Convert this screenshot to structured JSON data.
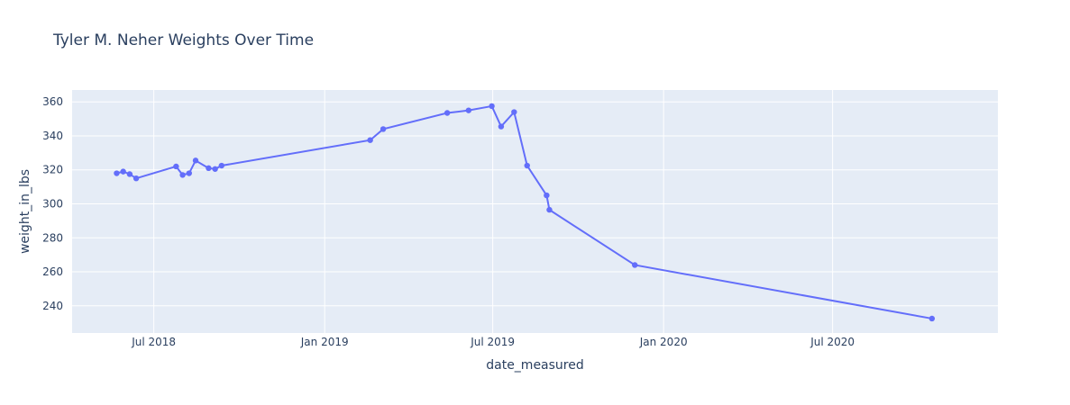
{
  "chart_data": {
    "type": "line",
    "title": "Tyler M. Neher Weights Over Time",
    "xlabel": "date_measured",
    "ylabel": "weight_in_lbs",
    "xlim": [
      "2018-04-04",
      "2020-12-26"
    ],
    "ylim": [
      224,
      367
    ],
    "grid": true,
    "x_ticks": [
      {
        "value": "2018-07-01",
        "label": "Jul 2018"
      },
      {
        "value": "2019-01-01",
        "label": "Jan 2019"
      },
      {
        "value": "2019-07-01",
        "label": "Jul 2019"
      },
      {
        "value": "2020-01-01",
        "label": "Jan 2020"
      },
      {
        "value": "2020-07-01",
        "label": "Jul 2020"
      }
    ],
    "y_ticks": [
      240,
      260,
      280,
      300,
      320,
      340,
      360
    ],
    "series": [
      {
        "color": "#636efa",
        "points": [
          {
            "x": "2018-05-22",
            "y": 318
          },
          {
            "x": "2018-05-29",
            "y": 319
          },
          {
            "x": "2018-06-05",
            "y": 317.5
          },
          {
            "x": "2018-06-12",
            "y": 315
          },
          {
            "x": "2018-07-25",
            "y": 322
          },
          {
            "x": "2018-08-01",
            "y": 317
          },
          {
            "x": "2018-08-08",
            "y": 318
          },
          {
            "x": "2018-08-15",
            "y": 325.5
          },
          {
            "x": "2018-08-29",
            "y": 321
          },
          {
            "x": "2018-09-05",
            "y": 320.5
          },
          {
            "x": "2018-09-12",
            "y": 322.5
          },
          {
            "x": "2019-02-19",
            "y": 337.5
          },
          {
            "x": "2019-03-05",
            "y": 344
          },
          {
            "x": "2019-05-13",
            "y": 353.5
          },
          {
            "x": "2019-06-05",
            "y": 355
          },
          {
            "x": "2019-06-30",
            "y": 357.5
          },
          {
            "x": "2019-07-10",
            "y": 345.5
          },
          {
            "x": "2019-07-24",
            "y": 354
          },
          {
            "x": "2019-08-07",
            "y": 322.5
          },
          {
            "x": "2019-08-28",
            "y": 305
          },
          {
            "x": "2019-08-31",
            "y": 296.5
          },
          {
            "x": "2019-12-01",
            "y": 264
          },
          {
            "x": "2020-10-16",
            "y": 232.5
          }
        ]
      }
    ]
  }
}
